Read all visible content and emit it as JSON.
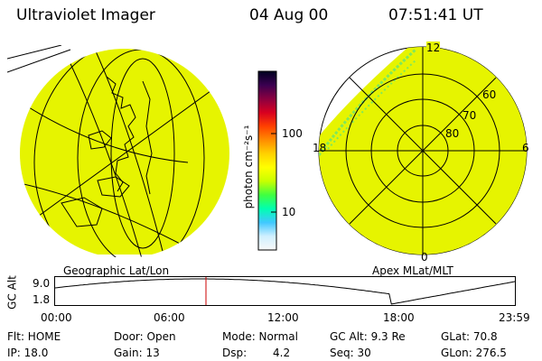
{
  "header": {
    "instrument": "Ultraviolet Imager",
    "date": "04 Aug 00",
    "time": "07:51:41 UT"
  },
  "colors": {
    "fill_yellow": "#e6f400",
    "noise_green": "#7fe85a",
    "marker_red": "#cc0000"
  },
  "colorbar": {
    "unit_label": "photon cm⁻²s⁻¹",
    "ticks": [
      "100",
      "10"
    ],
    "gradient": [
      "#000020",
      "#3a0050",
      "#8a0040",
      "#d80020",
      "#ff4000",
      "#ff8c00",
      "#ffd200",
      "#ffff00",
      "#c8ff00",
      "#40ff40",
      "#00ffb0",
      "#40c8ff",
      "#d0f0ff",
      "#f8f8f8"
    ]
  },
  "panels": {
    "left_caption": "Geographic Lat/Lon",
    "right_caption": "Apex MLat/MLT",
    "mlt_labels": {
      "top": "12",
      "left": "18",
      "right": "6",
      "bottom": "0"
    },
    "mlat_labels": [
      "60",
      "70",
      "80"
    ]
  },
  "altitude_strip": {
    "axis_label": "GC Alt",
    "y_ticks": [
      "9.0",
      "1.8"
    ],
    "x_ticks": [
      "00:00",
      "06:00",
      "12:00",
      "18:00",
      "23:59"
    ],
    "current_time_hours": 7.86
  },
  "status": {
    "flt": "Flt: HOME",
    "door": "Door: Open",
    "mode": "Mode: Normal",
    "gcalt": "GC Alt: 9.3 Re",
    "glat": "GLat: 70.8",
    "ip": "IP: 18.0",
    "gain": "Gain: 13",
    "dsp_label": "Dsp:",
    "dsp_value": "4.2",
    "seq": "Seq: 30",
    "glon": "GLon: 276.5"
  }
}
